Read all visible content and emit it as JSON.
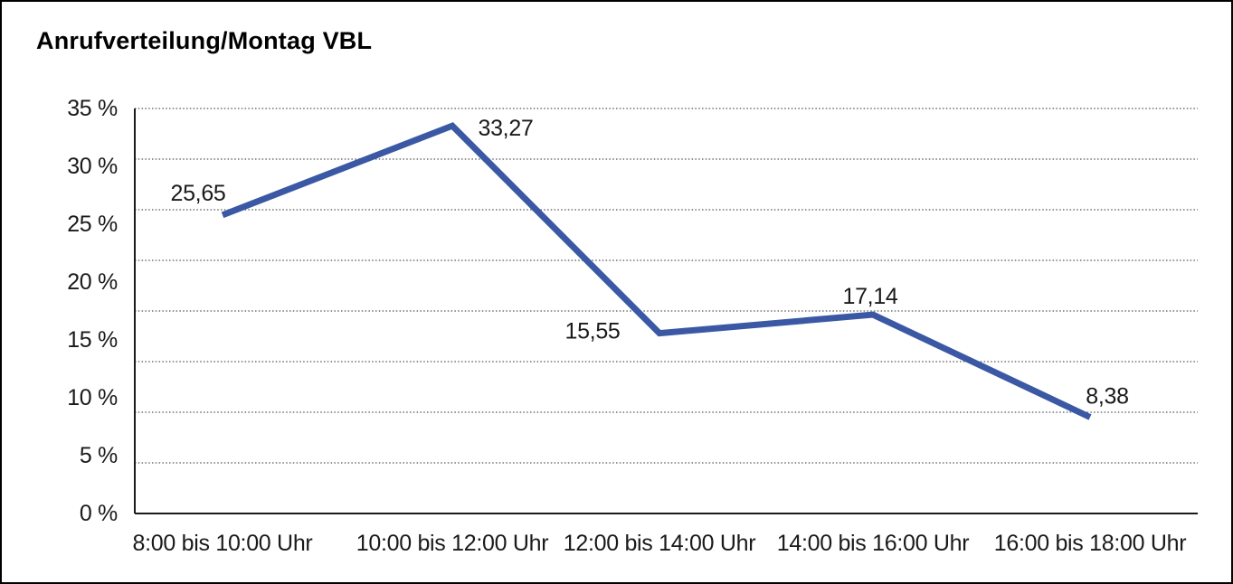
{
  "header": {
    "title": "Anrufverteilung/Montag VBL"
  },
  "chart_data": {
    "type": "line",
    "title": "Anrufverteilung/Montag VBL",
    "categories": [
      "8:00 bis 10:00 Uhr",
      "10:00 bis 12:00 Uhr",
      "12:00 bis 14:00 Uhr",
      "14:00 bis 16:00 Uhr",
      "16:00 bis 18:00 Uhr"
    ],
    "series": [
      {
        "name": "Anrufverteilung Montag VBL",
        "values": [
          25.65,
          33.27,
          15.55,
          17.14,
          8.38
        ],
        "value_labels": [
          "25,65",
          "33,27",
          "15,55",
          "17,14",
          "8,38"
        ]
      }
    ],
    "xlabel": "",
    "ylabel": "",
    "y_ticks": [
      "35 %",
      "30 %",
      "25 %",
      "20 %",
      "15 %",
      "10 %",
      "5 %",
      "0 %"
    ],
    "ylim": [
      0,
      35
    ],
    "grid": "horizontal-dotted",
    "legend": "none",
    "colors": {
      "line": "#3A58A4",
      "text": "#1a1a1a",
      "axis": "#1a1a1a",
      "gridline": "#555555",
      "background": "#ffffff"
    }
  }
}
